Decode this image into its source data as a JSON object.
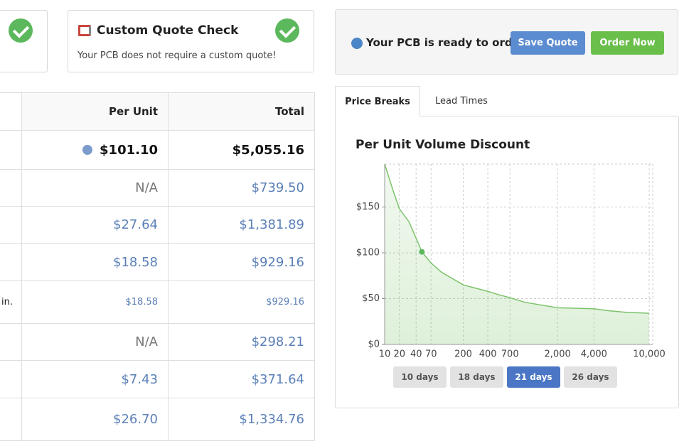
{
  "quote_card": {
    "title": "Custom Quote Check",
    "text": "Your PCB does not require a custom quote!"
  },
  "order_panel": {
    "status": "Your PCB is ready to order",
    "buttons": [
      "Save Quote",
      "Order Now"
    ]
  },
  "table": {
    "header": [
      "Per Unit",
      "Total"
    ],
    "rows": [
      {
        "per_unit": "$101.10",
        "total": "$5,055.16"
      },
      {
        "per_unit": "N/A",
        "total": "$739.50"
      },
      {
        "per_unit": "$27.64",
        "total": "$1,381.89"
      },
      {
        "per_unit": "$18.58",
        "total": "$929.16"
      },
      {
        "label": "in.",
        "per_unit": "$18.58",
        "total": "$929.16"
      },
      {
        "per_unit": "N/A",
        "total": "$298.21"
      },
      {
        "per_unit": "$7.43",
        "total": "$371.64"
      },
      {
        "per_unit": "$26.70",
        "total": "$1,334.76"
      }
    ]
  },
  "tabs": {
    "items": [
      "Price Breaks",
      "Lead Times"
    ],
    "active": 0
  },
  "chart_data": {
    "type": "line",
    "title": "Per Unit Volume Discount",
    "color": "#7cc36a",
    "x": [
      10,
      15,
      20,
      30,
      40,
      50,
      70,
      100,
      200,
      300,
      400,
      500,
      700,
      1000,
      2000,
      4000,
      5000,
      7000,
      10000
    ],
    "values": [
      197,
      168,
      148,
      134,
      116,
      101.1,
      89,
      79,
      65,
      61,
      58,
      55,
      51,
      46,
      40,
      39,
      37,
      35,
      34
    ],
    "marker": {
      "x": 50,
      "y": 101.1
    },
    "xscale": "power",
    "xexponent": 0.17,
    "xlim": [
      10,
      10000
    ],
    "ylim": [
      0,
      197
    ],
    "xticks": [
      10,
      20,
      40,
      70,
      200,
      400,
      700,
      {
        "value": 2000,
        "label": "2,000"
      },
      {
        "value": 4000,
        "label": "4,000"
      },
      {
        "value": 10000,
        "label": "10,000"
      }
    ],
    "yticks": [
      {
        "value": 0,
        "label": "$0"
      },
      {
        "value": 50,
        "label": "$50"
      },
      {
        "value": 100,
        "label": "$100"
      },
      {
        "value": 150,
        "label": "$150"
      }
    ],
    "grid": true
  },
  "lead_times": {
    "options": [
      "10 days",
      "18 days",
      "21 days",
      "26 days"
    ],
    "active": 2
  }
}
